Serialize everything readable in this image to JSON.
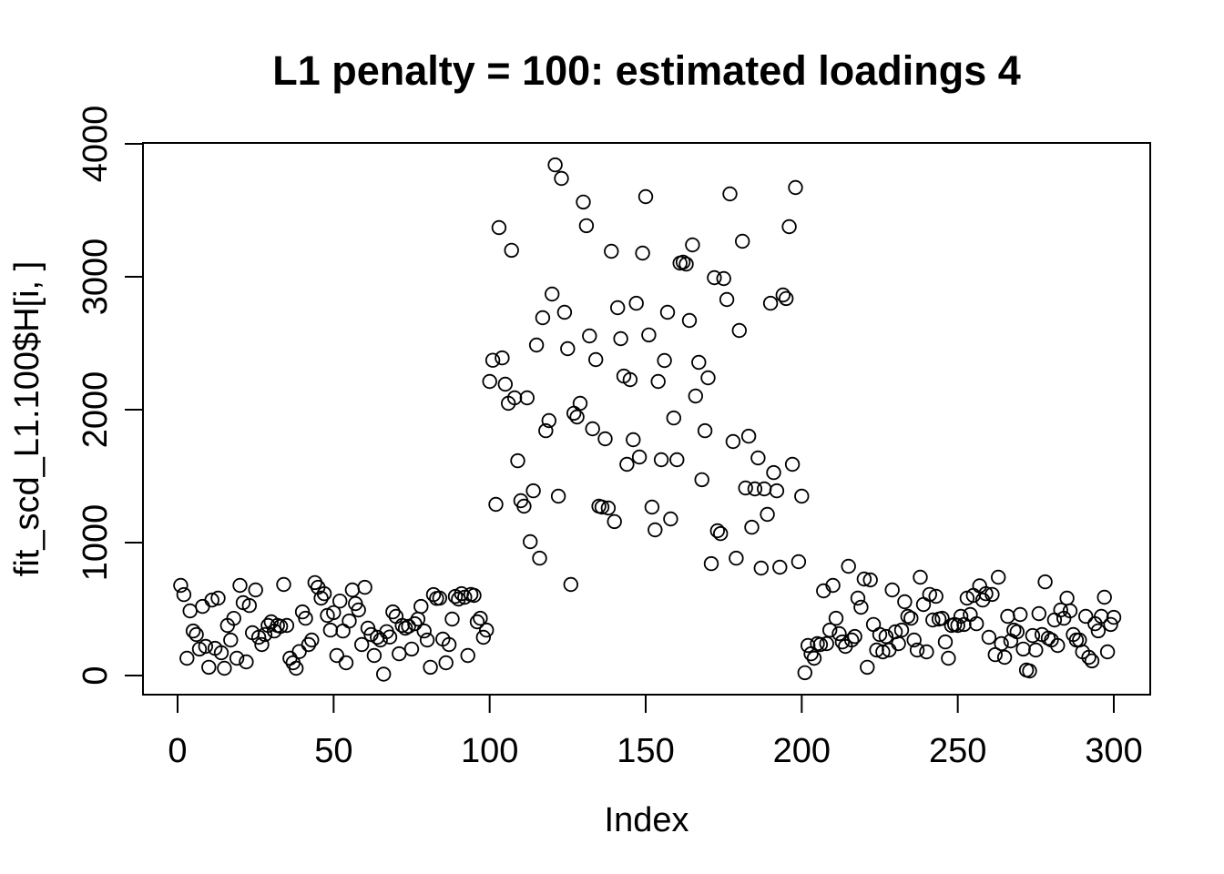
{
  "chart_data": {
    "type": "scatter",
    "title": "L1 penalty = 100: estimated loadings 4",
    "xlabel": "Index",
    "ylabel": "fit_scd_L1.100$H[i, ]",
    "xlim": [
      0,
      300
    ],
    "ylim": [
      0,
      4000
    ],
    "xticks": [
      0,
      50,
      100,
      150,
      200,
      250,
      300
    ],
    "yticks": [
      0,
      1000,
      2000,
      3000,
      4000
    ],
    "grid": false,
    "legend": "none",
    "marker": "open-circle",
    "point_color": "#000000",
    "background_color": "#ffffff",
    "points": [
      [
        1,
        678
      ],
      [
        2,
        609
      ],
      [
        3,
        130
      ],
      [
        4,
        486
      ],
      [
        5,
        335
      ],
      [
        6,
        308
      ],
      [
        7,
        199
      ],
      [
        8,
        520
      ],
      [
        9,
        219
      ],
      [
        10,
        62
      ],
      [
        11,
        568
      ],
      [
        12,
        205
      ],
      [
        13,
        582
      ],
      [
        14,
        171
      ],
      [
        15,
        55
      ],
      [
        16,
        377
      ],
      [
        17,
        267
      ],
      [
        18,
        430
      ],
      [
        19,
        130
      ],
      [
        20,
        678
      ],
      [
        21,
        548
      ],
      [
        22,
        103
      ],
      [
        23,
        527
      ],
      [
        24,
        322
      ],
      [
        25,
        644
      ],
      [
        26,
        288
      ],
      [
        27,
        233
      ],
      [
        28,
        308
      ],
      [
        29,
        377
      ],
      [
        30,
        404
      ],
      [
        31,
        335
      ],
      [
        32,
        377
      ],
      [
        33,
        370
      ],
      [
        34,
        685
      ],
      [
        35,
        377
      ],
      [
        36,
        130
      ],
      [
        37,
        96
      ],
      [
        38,
        55
      ],
      [
        39,
        180
      ],
      [
        40,
        479
      ],
      [
        41,
        431
      ],
      [
        42,
        233
      ],
      [
        43,
        267
      ],
      [
        44,
        699
      ],
      [
        45,
        664
      ],
      [
        46,
        582
      ],
      [
        47,
        616
      ],
      [
        48,
        452
      ],
      [
        49,
        342
      ],
      [
        50,
        473
      ],
      [
        51,
        151
      ],
      [
        52,
        560
      ],
      [
        53,
        335
      ],
      [
        54,
        96
      ],
      [
        55,
        410
      ],
      [
        56,
        644
      ],
      [
        57,
        541
      ],
      [
        58,
        493
      ],
      [
        59,
        233
      ],
      [
        60,
        664
      ],
      [
        61,
        356
      ],
      [
        62,
        308
      ],
      [
        63,
        151
      ],
      [
        64,
        288
      ],
      [
        65,
        267
      ],
      [
        66,
        10
      ],
      [
        67,
        330
      ],
      [
        68,
        290
      ],
      [
        69,
        479
      ],
      [
        70,
        445
      ],
      [
        71,
        164
      ],
      [
        72,
        377
      ],
      [
        73,
        356
      ],
      [
        74,
        370
      ],
      [
        75,
        199
      ],
      [
        76,
        390
      ],
      [
        77,
        425
      ],
      [
        78,
        520
      ],
      [
        79,
        335
      ],
      [
        80,
        267
      ],
      [
        81,
        62
      ],
      [
        82,
        609
      ],
      [
        83,
        580
      ],
      [
        84,
        582
      ],
      [
        85,
        274
      ],
      [
        86,
        96
      ],
      [
        87,
        233
      ],
      [
        88,
        425
      ],
      [
        89,
        595
      ],
      [
        90,
        575
      ],
      [
        91,
        616
      ],
      [
        92,
        589
      ],
      [
        93,
        151
      ],
      [
        94,
        610
      ],
      [
        95,
        603
      ],
      [
        96,
        404
      ],
      [
        97,
        431
      ],
      [
        98,
        288
      ],
      [
        99,
        342
      ],
      [
        100,
        2212
      ],
      [
        101,
        2372
      ],
      [
        102,
        1288
      ],
      [
        103,
        3370
      ],
      [
        104,
        2390
      ],
      [
        105,
        2192
      ],
      [
        106,
        2048
      ],
      [
        107,
        3199
      ],
      [
        108,
        2089
      ],
      [
        109,
        1616
      ],
      [
        110,
        1315
      ],
      [
        111,
        1274
      ],
      [
        112,
        2089
      ],
      [
        113,
        1007
      ],
      [
        114,
        1390
      ],
      [
        115,
        2486
      ],
      [
        116,
        883
      ],
      [
        117,
        2692
      ],
      [
        118,
        1842
      ],
      [
        119,
        1918
      ],
      [
        120,
        2870
      ],
      [
        121,
        3842
      ],
      [
        122,
        1349
      ],
      [
        123,
        3740
      ],
      [
        124,
        2733
      ],
      [
        125,
        2459
      ],
      [
        126,
        685
      ],
      [
        127,
        1973
      ],
      [
        128,
        1945
      ],
      [
        129,
        2048
      ],
      [
        130,
        3562
      ],
      [
        131,
        3384
      ],
      [
        132,
        2555
      ],
      [
        133,
        1856
      ],
      [
        134,
        2377
      ],
      [
        135,
        1274
      ],
      [
        136,
        1267
      ],
      [
        137,
        1781
      ],
      [
        138,
        1260
      ],
      [
        139,
        3192
      ],
      [
        140,
        1158
      ],
      [
        141,
        2767
      ],
      [
        142,
        2534
      ],
      [
        143,
        2253
      ],
      [
        144,
        1589
      ],
      [
        145,
        2226
      ],
      [
        146,
        1774
      ],
      [
        147,
        2801
      ],
      [
        148,
        1644
      ],
      [
        149,
        3178
      ],
      [
        150,
        3603
      ],
      [
        151,
        2562
      ],
      [
        152,
        1267
      ],
      [
        153,
        1096
      ],
      [
        154,
        2212
      ],
      [
        155,
        1623
      ],
      [
        156,
        2370
      ],
      [
        157,
        2733
      ],
      [
        158,
        1178
      ],
      [
        159,
        1938
      ],
      [
        160,
        1623
      ],
      [
        161,
        3103
      ],
      [
        162,
        3110
      ],
      [
        163,
        3095
      ],
      [
        164,
        2671
      ],
      [
        165,
        3240
      ],
      [
        166,
        2103
      ],
      [
        167,
        2356
      ],
      [
        168,
        1473
      ],
      [
        169,
        1842
      ],
      [
        170,
        2240
      ],
      [
        171,
        842
      ],
      [
        172,
        2993
      ],
      [
        173,
        1089
      ],
      [
        174,
        1068
      ],
      [
        175,
        2986
      ],
      [
        176,
        2829
      ],
      [
        177,
        3623
      ],
      [
        178,
        1760
      ],
      [
        179,
        883
      ],
      [
        180,
        2596
      ],
      [
        181,
        3267
      ],
      [
        182,
        1411
      ],
      [
        183,
        1801
      ],
      [
        184,
        1116
      ],
      [
        185,
        1404
      ],
      [
        186,
        1637
      ],
      [
        187,
        808
      ],
      [
        188,
        1404
      ],
      [
        189,
        1212
      ],
      [
        190,
        2801
      ],
      [
        191,
        1527
      ],
      [
        192,
        1390
      ],
      [
        193,
        815
      ],
      [
        194,
        2863
      ],
      [
        195,
        2836
      ],
      [
        196,
        3377
      ],
      [
        197,
        1589
      ],
      [
        198,
        3671
      ],
      [
        199,
        856
      ],
      [
        200,
        1349
      ],
      [
        201,
        21
      ],
      [
        202,
        226
      ],
      [
        203,
        164
      ],
      [
        204,
        130
      ],
      [
        205,
        240
      ],
      [
        206,
        233
      ],
      [
        207,
        637
      ],
      [
        208,
        240
      ],
      [
        209,
        342
      ],
      [
        210,
        678
      ],
      [
        211,
        431
      ],
      [
        212,
        315
      ],
      [
        213,
        253
      ],
      [
        214,
        219
      ],
      [
        215,
        822
      ],
      [
        216,
        267
      ],
      [
        217,
        294
      ],
      [
        218,
        582
      ],
      [
        219,
        514
      ],
      [
        220,
        726
      ],
      [
        221,
        62
      ],
      [
        222,
        719
      ],
      [
        223,
        384
      ],
      [
        224,
        192
      ],
      [
        225,
        308
      ],
      [
        226,
        178
      ],
      [
        227,
        294
      ],
      [
        228,
        192
      ],
      [
        229,
        644
      ],
      [
        230,
        329
      ],
      [
        231,
        240
      ],
      [
        232,
        342
      ],
      [
        233,
        555
      ],
      [
        234,
        445
      ],
      [
        235,
        431
      ],
      [
        236,
        267
      ],
      [
        237,
        192
      ],
      [
        238,
        740
      ],
      [
        239,
        534
      ],
      [
        240,
        178
      ],
      [
        241,
        610
      ],
      [
        242,
        418
      ],
      [
        243,
        596
      ],
      [
        244,
        425
      ],
      [
        245,
        431
      ],
      [
        246,
        253
      ],
      [
        247,
        130
      ],
      [
        248,
        377
      ],
      [
        249,
        384
      ],
      [
        250,
        377
      ],
      [
        251,
        445
      ],
      [
        252,
        384
      ],
      [
        253,
        582
      ],
      [
        254,
        459
      ],
      [
        255,
        603
      ],
      [
        256,
        390
      ],
      [
        257,
        675
      ],
      [
        258,
        568
      ],
      [
        259,
        616
      ],
      [
        260,
        288
      ],
      [
        261,
        610
      ],
      [
        262,
        157
      ],
      [
        263,
        740
      ],
      [
        264,
        240
      ],
      [
        265,
        137
      ],
      [
        266,
        445
      ],
      [
        267,
        260
      ],
      [
        268,
        342
      ],
      [
        269,
        329
      ],
      [
        270,
        459
      ],
      [
        271,
        199
      ],
      [
        272,
        41
      ],
      [
        273,
        34
      ],
      [
        274,
        301
      ],
      [
        275,
        192
      ],
      [
        276,
        466
      ],
      [
        277,
        308
      ],
      [
        278,
        705
      ],
      [
        279,
        281
      ],
      [
        280,
        267
      ],
      [
        281,
        418
      ],
      [
        282,
        226
      ],
      [
        283,
        493
      ],
      [
        284,
        431
      ],
      [
        285,
        582
      ],
      [
        286,
        486
      ],
      [
        287,
        308
      ],
      [
        288,
        267
      ],
      [
        289,
        267
      ],
      [
        290,
        178
      ],
      [
        291,
        445
      ],
      [
        292,
        137
      ],
      [
        293,
        110
      ],
      [
        294,
        390
      ],
      [
        295,
        336
      ],
      [
        296,
        445
      ],
      [
        297,
        589
      ],
      [
        298,
        178
      ],
      [
        299,
        384
      ],
      [
        300,
        438
      ]
    ]
  }
}
